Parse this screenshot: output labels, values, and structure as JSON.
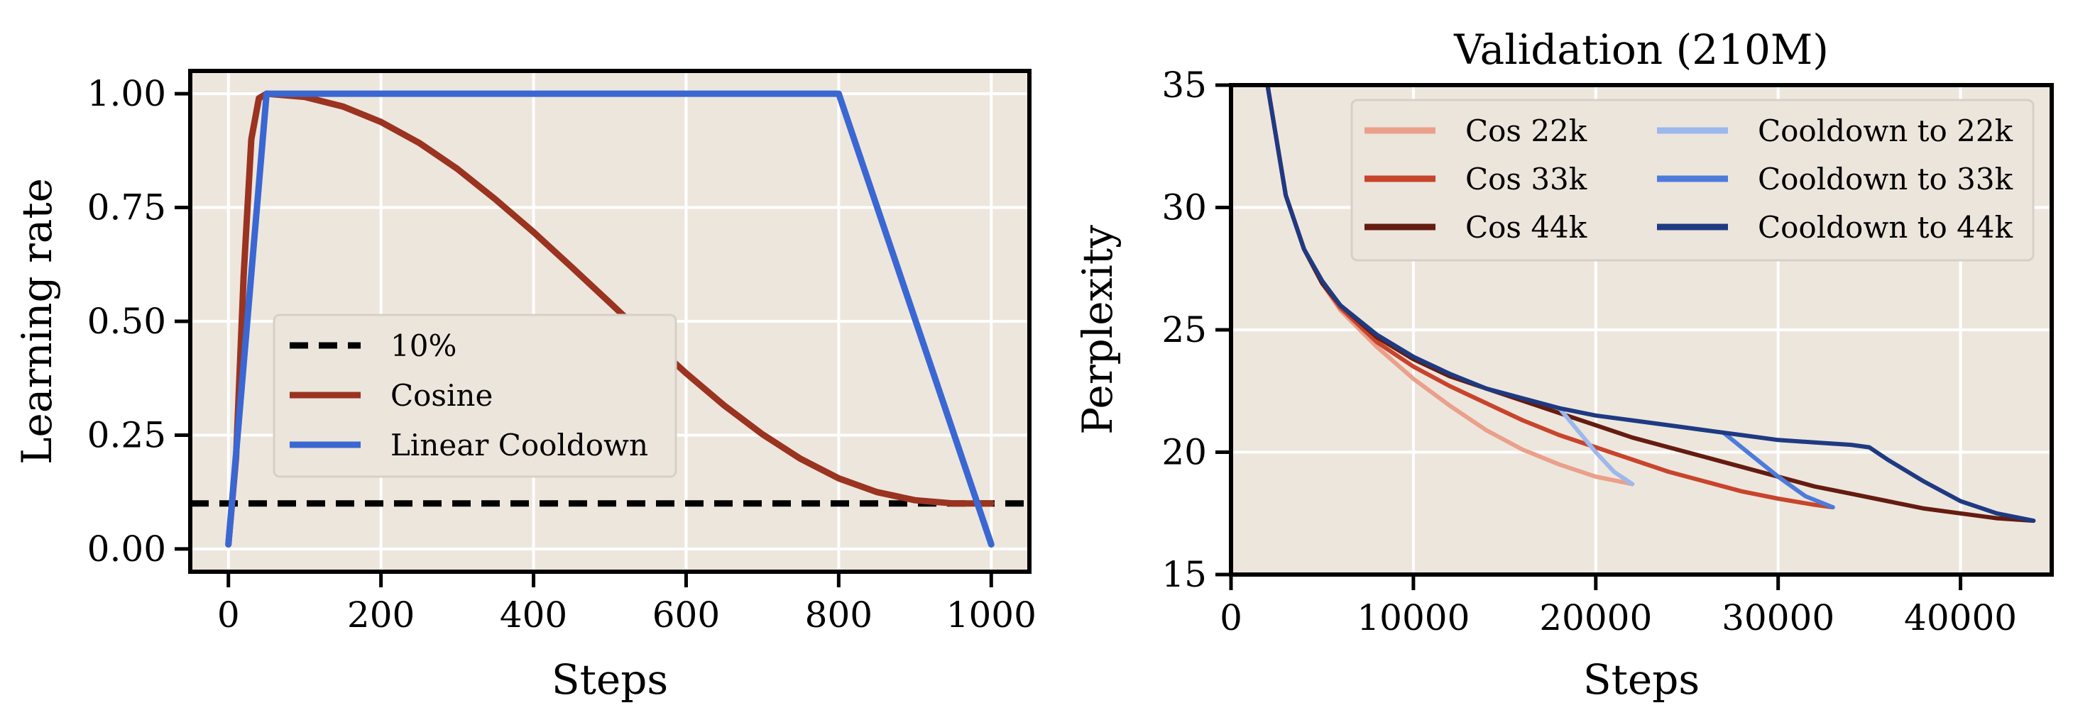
{
  "colors": {
    "plot_bg": "#ede6dd",
    "grid": "#ffffff",
    "axes": "#000000",
    "cosine": "#9a3320",
    "linear_cooldown": "#3a67d2",
    "threshold": "#000000",
    "cos_22k": "#eaa08a",
    "cos_33k": "#c8442c",
    "cos_44k": "#651c10",
    "cooldown_22k": "#9cb8ec",
    "cooldown_33k": "#4d7bdc",
    "cooldown_44k": "#1e3a82",
    "legend_bg": "#ece5dc",
    "legend_border": "#d6d0c8"
  },
  "chart_data": [
    {
      "type": "line",
      "title": "",
      "xlabel": "Steps",
      "ylabel": "Learning rate",
      "xlim": [
        -50,
        1050
      ],
      "ylim": [
        -0.05,
        1.05
      ],
      "xticks": [
        0,
        200,
        400,
        600,
        800,
        1000
      ],
      "xtick_labels": [
        "0",
        "200",
        "400",
        "600",
        "800",
        "1000"
      ],
      "yticks": [
        0.0,
        0.25,
        0.5,
        0.75,
        1.0
      ],
      "ytick_labels": [
        "0.00",
        "0.25",
        "0.50",
        "0.75",
        "1.00"
      ],
      "grid": true,
      "legend_position": "center-left",
      "legend": [
        "10%",
        "Cosine",
        "Linear Cooldown"
      ],
      "series": [
        {
          "name": "10%",
          "style": "dashed",
          "color_key": "threshold",
          "x": [
            -50,
            1050
          ],
          "y": [
            0.1,
            0.1
          ]
        },
        {
          "name": "Cosine",
          "style": "solid",
          "color_key": "cosine",
          "x": [
            0,
            10,
            20,
            30,
            40,
            50,
            100,
            150,
            200,
            250,
            300,
            350,
            400,
            450,
            500,
            550,
            600,
            650,
            700,
            750,
            800,
            850,
            900,
            950,
            1000
          ],
          "y": [
            0.01,
            0.2,
            0.6,
            0.9,
            0.99,
            1.0,
            0.993,
            0.972,
            0.938,
            0.892,
            0.835,
            0.768,
            0.696,
            0.619,
            0.541,
            0.462,
            0.386,
            0.315,
            0.252,
            0.198,
            0.155,
            0.125,
            0.107,
            0.1,
            0.1
          ]
        },
        {
          "name": "Linear Cooldown",
          "style": "solid",
          "color_key": "linear_cooldown",
          "x": [
            0,
            50,
            800,
            1000
          ],
          "y": [
            0.01,
            1.0,
            1.0,
            0.01
          ]
        }
      ]
    },
    {
      "type": "line",
      "title": "Validation (210M)",
      "xlabel": "Steps",
      "ylabel": "Perplexity",
      "xlim": [
        0,
        45000
      ],
      "ylim": [
        15,
        35
      ],
      "xticks": [
        0,
        10000,
        20000,
        30000,
        40000
      ],
      "xtick_labels": [
        "0",
        "10000",
        "20000",
        "30000",
        "40000"
      ],
      "yticks": [
        15,
        20,
        25,
        30,
        35
      ],
      "ytick_labels": [
        "15",
        "20",
        "25",
        "30",
        "35"
      ],
      "grid": true,
      "legend_position": "top-right",
      "legend": [
        "Cos 22k",
        "Cos 33k",
        "Cos 44k",
        "Cooldown to 22k",
        "Cooldown to 33k",
        "Cooldown to 44k"
      ],
      "series": [
        {
          "name": "Cos 22k",
          "color_key": "cos_22k",
          "x": [
            2000,
            3000,
            4000,
            5000,
            6000,
            8000,
            10000,
            12000,
            14000,
            16000,
            18000,
            20000,
            22000
          ],
          "y": [
            35,
            30.5,
            28.3,
            26.9,
            25.8,
            24.3,
            23.0,
            21.9,
            20.9,
            20.1,
            19.5,
            19.0,
            18.7
          ]
        },
        {
          "name": "Cos 33k",
          "color_key": "cos_33k",
          "x": [
            2000,
            3000,
            4000,
            5000,
            6000,
            8000,
            10000,
            12000,
            14000,
            16000,
            18000,
            20000,
            22000,
            24000,
            26000,
            28000,
            30000,
            32000,
            33000
          ],
          "y": [
            35,
            30.5,
            28.3,
            26.9,
            25.9,
            24.5,
            23.5,
            22.7,
            22.0,
            21.3,
            20.7,
            20.2,
            19.7,
            19.2,
            18.8,
            18.4,
            18.1,
            17.85,
            17.75
          ]
        },
        {
          "name": "Cos 44k",
          "color_key": "cos_44k",
          "x": [
            2000,
            3000,
            4000,
            5000,
            6000,
            8000,
            10000,
            12000,
            14000,
            16000,
            18000,
            20000,
            22000,
            24000,
            26000,
            28000,
            30000,
            32000,
            34000,
            36000,
            38000,
            40000,
            42000,
            44000
          ],
          "y": [
            35,
            30.5,
            28.3,
            26.9,
            26.0,
            24.7,
            23.8,
            23.1,
            22.6,
            22.1,
            21.6,
            21.1,
            20.6,
            20.2,
            19.8,
            19.4,
            19.0,
            18.6,
            18.3,
            18.0,
            17.7,
            17.5,
            17.3,
            17.2
          ]
        },
        {
          "name": "Cooldown to 22k",
          "color_key": "cooldown_22k",
          "x": [
            18000,
            19000,
            20000,
            21000,
            22000
          ],
          "y": [
            21.8,
            20.9,
            20.0,
            19.2,
            18.7
          ]
        },
        {
          "name": "Cooldown to 33k",
          "color_key": "cooldown_33k",
          "x": [
            27000,
            28500,
            30000,
            31500,
            33000
          ],
          "y": [
            20.8,
            19.9,
            19.0,
            18.2,
            17.75
          ]
        },
        {
          "name": "Cooldown to 44k",
          "color_key": "cooldown_44k",
          "x": [
            2000,
            3000,
            4000,
            5000,
            6000,
            8000,
            10000,
            12000,
            14000,
            16000,
            18000,
            20000,
            22000,
            24000,
            26000,
            28000,
            30000,
            32000,
            34000,
            35000,
            36000,
            38000,
            40000,
            42000,
            44000
          ],
          "y": [
            35,
            30.5,
            28.3,
            27.0,
            26.0,
            24.8,
            23.9,
            23.2,
            22.6,
            22.2,
            21.8,
            21.5,
            21.3,
            21.1,
            20.9,
            20.7,
            20.5,
            20.4,
            20.3,
            20.2,
            19.7,
            18.8,
            18.0,
            17.5,
            17.2
          ]
        }
      ]
    }
  ]
}
